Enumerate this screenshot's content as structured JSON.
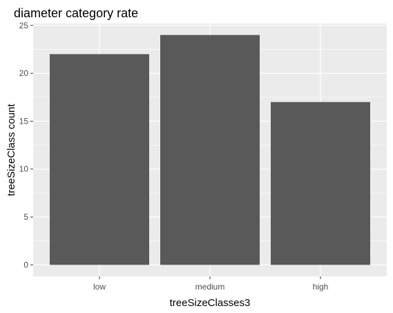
{
  "chart_data": {
    "type": "bar",
    "title": "diameter category rate",
    "xlabel": "treeSizeClasses3",
    "ylabel": "treeSizeClass count",
    "categories": [
      "low",
      "medium",
      "high"
    ],
    "values": [
      22,
      24,
      17
    ],
    "ylim": [
      -1.2,
      25.2
    ],
    "yticks": [
      0,
      5,
      10,
      15,
      20,
      25
    ],
    "grid": true,
    "bar_color": "#595959",
    "panel_color": "#ebebeb",
    "grid_major_color": "#ffffff"
  }
}
